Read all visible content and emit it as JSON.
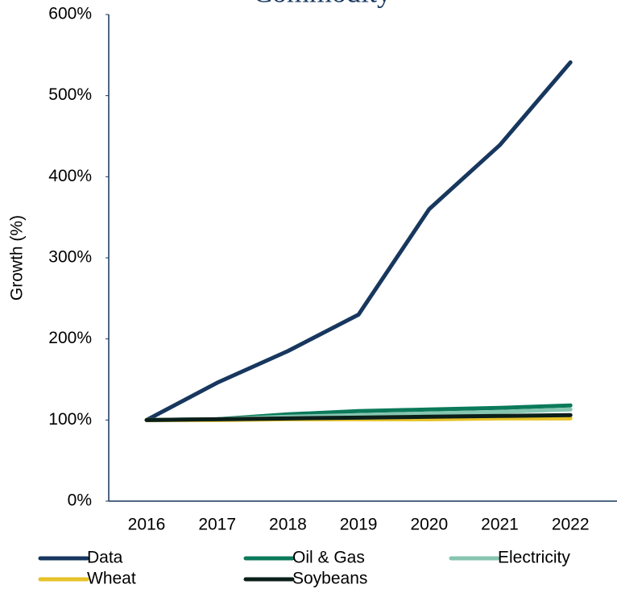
{
  "chart_data": {
    "type": "line",
    "title": "Commodity",
    "y_label": "Growth (%)",
    "categories": [
      "2016",
      "2017",
      "2018",
      "2019",
      "2020",
      "2021",
      "2022"
    ],
    "series": [
      {
        "name": "Data",
        "color": "#17375e",
        "values": [
          100,
          146,
          185,
          230,
          360,
          439,
          541
        ]
      },
      {
        "name": "Oil & Gas",
        "color": "#0b7a5a",
        "values": [
          100,
          101,
          107,
          111,
          113,
          115,
          118
        ]
      },
      {
        "name": "Electricity",
        "color": "#86c5b0",
        "values": [
          100,
          101,
          104,
          106,
          108,
          110,
          113
        ]
      },
      {
        "name": "Wheat",
        "color": "#e6c229",
        "values": [
          100,
          100,
          101,
          101,
          101,
          102,
          102
        ]
      },
      {
        "name": "Soybeans",
        "color": "#0b1f1a",
        "values": [
          100,
          101,
          102,
          103,
          104,
          105,
          106
        ]
      }
    ],
    "ylim": [
      0,
      600
    ],
    "yticks": [
      {
        "value": 0,
        "label": "0%"
      },
      {
        "value": 100,
        "label": "100%"
      },
      {
        "value": 200,
        "label": "200%"
      },
      {
        "value": 300,
        "label": "300%"
      },
      {
        "value": 400,
        "label": "400%"
      },
      {
        "value": 500,
        "label": "500%"
      },
      {
        "value": 600,
        "label": "600%"
      }
    ],
    "grid": false,
    "legend": "bottom"
  }
}
